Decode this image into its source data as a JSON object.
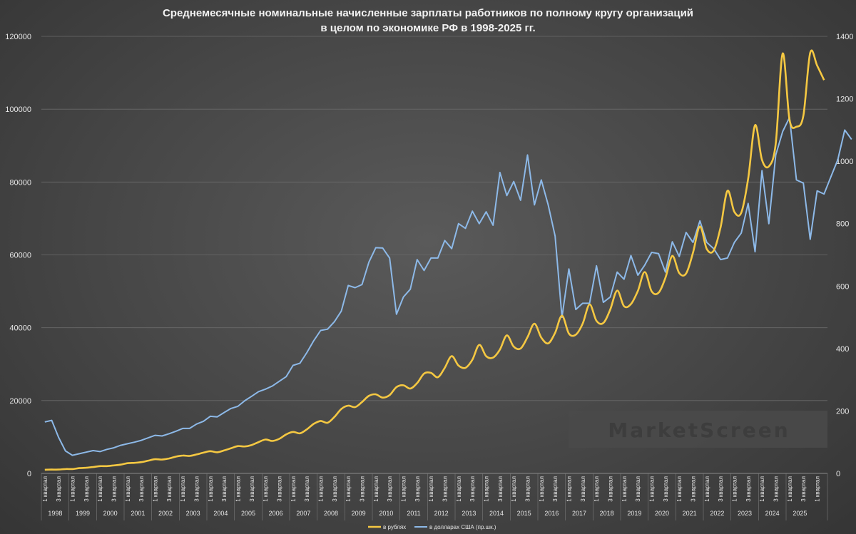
{
  "chart_data": {
    "type": "line",
    "title_lines": [
      "Среднемесячные номинальные начисленные зарплаты работников по полному кругу организаций",
      "в целом по экономике РФ в 1998-2025 гг."
    ],
    "watermark": "MarketScreen",
    "y_left": {
      "min": 0,
      "max": 120000,
      "ticks": [
        "0",
        "20000",
        "40000",
        "60000",
        "80000",
        "100000",
        "120000"
      ]
    },
    "y_right": {
      "min": 0,
      "max": 1400,
      "ticks": [
        "0",
        "200",
        "400",
        "600",
        "800",
        "1000",
        "1200",
        "1400"
      ]
    },
    "quarter_labels": [
      "1 квартал",
      "3 квартал"
    ],
    "years": [
      "1998",
      "1999",
      "2000",
      "2001",
      "2002",
      "2003",
      "2004",
      "2005",
      "2006",
      "2007",
      "2008",
      "2009",
      "2010",
      "2011",
      "2012",
      "2013",
      "2014",
      "2015",
      "2016",
      "2017",
      "2018",
      "2019",
      "2020",
      "2021",
      "2022",
      "2023",
      "2024",
      "2025"
    ],
    "grid": "horizontal",
    "legend_position": "bottom",
    "colors": {
      "rub": "#f5c842",
      "usd": "#8db9e8",
      "grid": "#6a6a6a"
    },
    "series": [
      {
        "name": "в рублях",
        "axis": "left",
        "values": [
          1000,
          1050,
          1050,
          1200,
          1200,
          1450,
          1550,
          1750,
          2000,
          2000,
          2200,
          2400,
          2800,
          2900,
          3100,
          3500,
          3900,
          3800,
          4100,
          4600,
          4900,
          4800,
          5200,
          5700,
          6100,
          5800,
          6300,
          6900,
          7500,
          7400,
          7800,
          8600,
          9300,
          8900,
          9500,
          10700,
          11400,
          11000,
          12100,
          13600,
          14400,
          13900,
          15500,
          17700,
          18600,
          18200,
          19600,
          21300,
          21700,
          20800,
          21500,
          23700,
          24200,
          23300,
          24800,
          27400,
          27600,
          26400,
          29000,
          32200,
          29600,
          29000,
          31200,
          35300,
          32200,
          31800,
          34000,
          37900,
          34800,
          34300,
          37400,
          41100,
          37300,
          35700,
          38600,
          43300,
          38400,
          38100,
          41100,
          46400,
          41900,
          41300,
          45000,
          50200,
          45900,
          46500,
          50100,
          55300,
          50000,
          49600,
          53700,
          59700,
          55000,
          54900,
          60600,
          67800,
          61600,
          61200,
          67600,
          77600,
          71800,
          71600,
          80900,
          95600,
          86100,
          84300,
          90600,
          115300,
          97100,
          95200,
          98200,
          115500,
          112000,
          108000
        ]
      },
      {
        "name": "в долларах США (пр.шк.)",
        "axis": "right",
        "values": [
          165,
          170,
          115,
          72,
          58,
          63,
          68,
          73,
          70,
          77,
          82,
          90,
          95,
          100,
          106,
          114,
          122,
          120,
          127,
          135,
          144,
          144,
          158,
          167,
          183,
          181,
          195,
          208,
          215,
          233,
          247,
          262,
          270,
          280,
          295,
          310,
          346,
          353,
          387,
          425,
          458,
          462,
          486,
          520,
          602,
          595,
          605,
          677,
          723,
          722,
          690,
          510,
          565,
          590,
          685,
          650,
          690,
          690,
          746,
          720,
          800,
          785,
          840,
          800,
          838,
          795,
          964,
          890,
          935,
          875,
          1020,
          860,
          940,
          860,
          760,
          500,
          655,
          525,
          545,
          545,
          665,
          548,
          565,
          645,
          622,
          698,
          635,
          667,
          708,
          704,
          645,
          742,
          695,
          772,
          740,
          809,
          740,
          720,
          685,
          690,
          740,
          770,
          865,
          710,
          970,
          800,
          1020,
          1095,
          1140,
          940,
          930,
          750,
          905,
          895,
          950,
          1005,
          1100,
          1070
        ]
      }
    ]
  }
}
